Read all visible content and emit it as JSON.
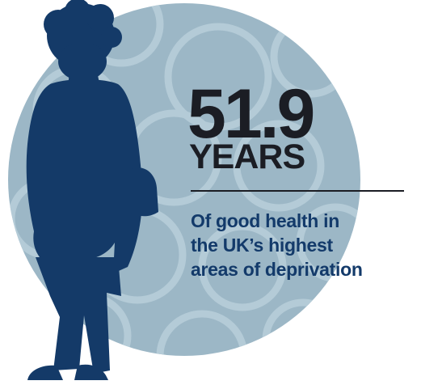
{
  "stat": {
    "number": "51.9",
    "unit": "YEARS"
  },
  "caption": {
    "lines": [
      "Of good health in",
      "the UK’s highest",
      "areas of deprivation"
    ]
  },
  "colors": {
    "circle": "#9cb7c6",
    "circle_pattern": "#b4cbd7",
    "silhouette": "#143a68",
    "headline_text": "#1b1d24",
    "caption_text": "#133a6a"
  },
  "illustration": {
    "figure": "woman-silhouette-icon",
    "background": "patterned-circle"
  }
}
